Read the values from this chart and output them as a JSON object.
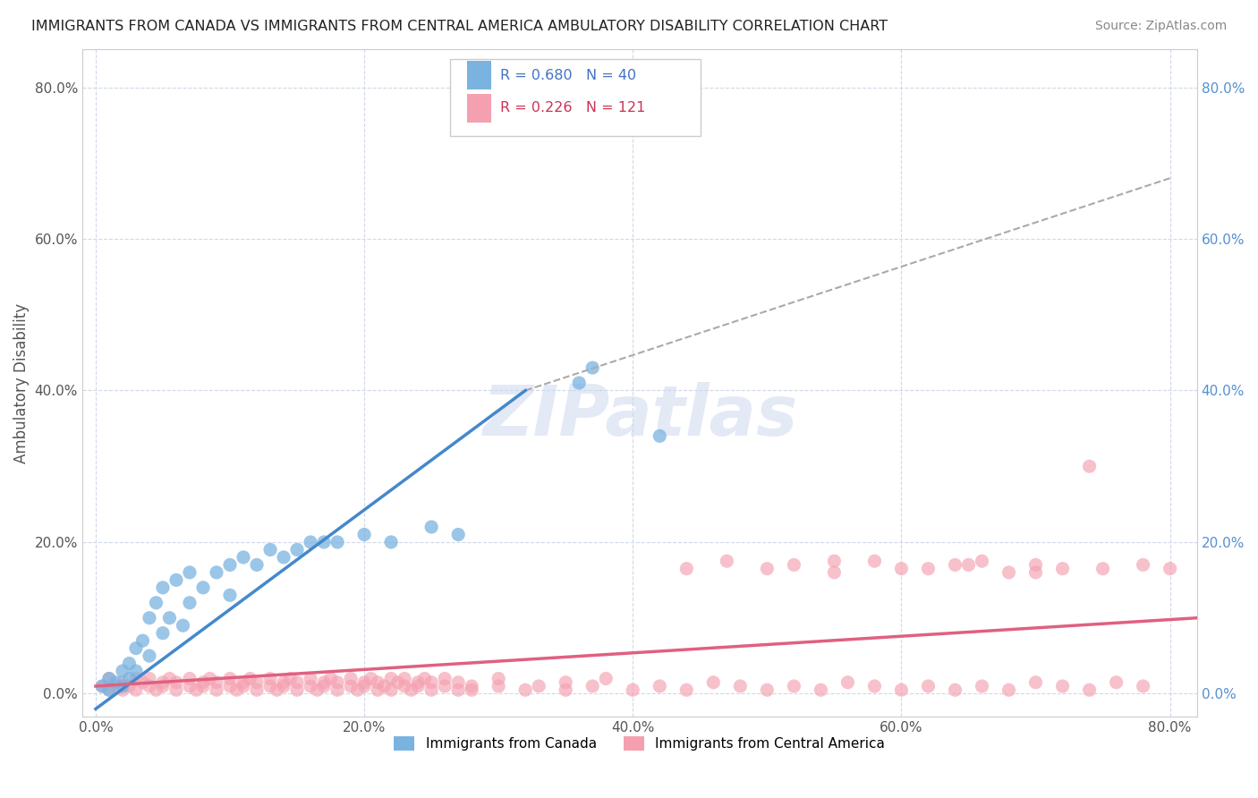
{
  "title": "IMMIGRANTS FROM CANADA VS IMMIGRANTS FROM CENTRAL AMERICA AMBULATORY DISABILITY CORRELATION CHART",
  "source": "Source: ZipAtlas.com",
  "ylabel": "Ambulatory Disability",
  "x_tick_labels": [
    "0.0%",
    "20.0%",
    "40.0%",
    "60.0%",
    "80.0%"
  ],
  "x_tick_vals": [
    0.0,
    0.2,
    0.4,
    0.6,
    0.8
  ],
  "y_tick_labels": [
    "0.0%",
    "20.0%",
    "40.0%",
    "60.0%",
    "80.0%"
  ],
  "y_tick_vals": [
    0.0,
    0.2,
    0.4,
    0.6,
    0.8
  ],
  "xlim": [
    -0.01,
    0.82
  ],
  "ylim": [
    -0.03,
    0.85
  ],
  "canada_color": "#7ab3e0",
  "centralamerica_color": "#f4a0b0",
  "watermark": "ZIPatlas",
  "grid_color": "#d0d8e8",
  "background_color": "#ffffff",
  "title_color": "#222222",
  "source_color": "#888888",
  "canada_scatter": [
    [
      0.005,
      0.01
    ],
    [
      0.01,
      0.02
    ],
    [
      0.01,
      0.005
    ],
    [
      0.015,
      0.015
    ],
    [
      0.02,
      0.03
    ],
    [
      0.02,
      0.01
    ],
    [
      0.025,
      0.04
    ],
    [
      0.025,
      0.02
    ],
    [
      0.03,
      0.06
    ],
    [
      0.03,
      0.03
    ],
    [
      0.035,
      0.07
    ],
    [
      0.04,
      0.1
    ],
    [
      0.04,
      0.05
    ],
    [
      0.045,
      0.12
    ],
    [
      0.05,
      0.08
    ],
    [
      0.05,
      0.14
    ],
    [
      0.055,
      0.1
    ],
    [
      0.06,
      0.15
    ],
    [
      0.065,
      0.09
    ],
    [
      0.07,
      0.16
    ],
    [
      0.07,
      0.12
    ],
    [
      0.08,
      0.14
    ],
    [
      0.09,
      0.16
    ],
    [
      0.1,
      0.17
    ],
    [
      0.1,
      0.13
    ],
    [
      0.11,
      0.18
    ],
    [
      0.12,
      0.17
    ],
    [
      0.13,
      0.19
    ],
    [
      0.14,
      0.18
    ],
    [
      0.15,
      0.19
    ],
    [
      0.16,
      0.2
    ],
    [
      0.17,
      0.2
    ],
    [
      0.18,
      0.2
    ],
    [
      0.2,
      0.21
    ],
    [
      0.22,
      0.2
    ],
    [
      0.25,
      0.22
    ],
    [
      0.27,
      0.21
    ],
    [
      0.36,
      0.41
    ],
    [
      0.37,
      0.43
    ],
    [
      0.42,
      0.34
    ]
  ],
  "canada_line_x": [
    0.0,
    0.32
  ],
  "canada_line_y": [
    -0.02,
    0.4
  ],
  "centralamerica_scatter": [
    [
      0.005,
      0.01
    ],
    [
      0.01,
      0.02
    ],
    [
      0.01,
      0.005
    ],
    [
      0.015,
      0.01
    ],
    [
      0.02,
      0.015
    ],
    [
      0.02,
      0.005
    ],
    [
      0.025,
      0.01
    ],
    [
      0.03,
      0.02
    ],
    [
      0.03,
      0.005
    ],
    [
      0.035,
      0.015
    ],
    [
      0.04,
      0.01
    ],
    [
      0.04,
      0.02
    ],
    [
      0.045,
      0.005
    ],
    [
      0.05,
      0.015
    ],
    [
      0.05,
      0.01
    ],
    [
      0.055,
      0.02
    ],
    [
      0.06,
      0.005
    ],
    [
      0.06,
      0.015
    ],
    [
      0.07,
      0.01
    ],
    [
      0.07,
      0.02
    ],
    [
      0.075,
      0.005
    ],
    [
      0.08,
      0.015
    ],
    [
      0.08,
      0.01
    ],
    [
      0.085,
      0.02
    ],
    [
      0.09,
      0.005
    ],
    [
      0.09,
      0.015
    ],
    [
      0.1,
      0.01
    ],
    [
      0.1,
      0.02
    ],
    [
      0.105,
      0.005
    ],
    [
      0.11,
      0.015
    ],
    [
      0.11,
      0.01
    ],
    [
      0.115,
      0.02
    ],
    [
      0.12,
      0.005
    ],
    [
      0.12,
      0.015
    ],
    [
      0.13,
      0.01
    ],
    [
      0.13,
      0.02
    ],
    [
      0.135,
      0.005
    ],
    [
      0.14,
      0.015
    ],
    [
      0.14,
      0.01
    ],
    [
      0.145,
      0.02
    ],
    [
      0.15,
      0.005
    ],
    [
      0.15,
      0.015
    ],
    [
      0.16,
      0.01
    ],
    [
      0.16,
      0.02
    ],
    [
      0.165,
      0.005
    ],
    [
      0.17,
      0.015
    ],
    [
      0.17,
      0.01
    ],
    [
      0.175,
      0.02
    ],
    [
      0.18,
      0.005
    ],
    [
      0.18,
      0.015
    ],
    [
      0.19,
      0.01
    ],
    [
      0.19,
      0.02
    ],
    [
      0.195,
      0.005
    ],
    [
      0.2,
      0.015
    ],
    [
      0.2,
      0.01
    ],
    [
      0.205,
      0.02
    ],
    [
      0.21,
      0.005
    ],
    [
      0.21,
      0.015
    ],
    [
      0.215,
      0.01
    ],
    [
      0.22,
      0.02
    ],
    [
      0.22,
      0.005
    ],
    [
      0.225,
      0.015
    ],
    [
      0.23,
      0.01
    ],
    [
      0.23,
      0.02
    ],
    [
      0.235,
      0.005
    ],
    [
      0.24,
      0.015
    ],
    [
      0.24,
      0.01
    ],
    [
      0.245,
      0.02
    ],
    [
      0.25,
      0.005
    ],
    [
      0.25,
      0.015
    ],
    [
      0.26,
      0.01
    ],
    [
      0.26,
      0.02
    ],
    [
      0.27,
      0.005
    ],
    [
      0.27,
      0.015
    ],
    [
      0.28,
      0.01
    ],
    [
      0.28,
      0.005
    ],
    [
      0.3,
      0.01
    ],
    [
      0.3,
      0.02
    ],
    [
      0.32,
      0.005
    ],
    [
      0.33,
      0.01
    ],
    [
      0.35,
      0.005
    ],
    [
      0.35,
      0.015
    ],
    [
      0.37,
      0.01
    ],
    [
      0.38,
      0.02
    ],
    [
      0.4,
      0.005
    ],
    [
      0.42,
      0.01
    ],
    [
      0.44,
      0.005
    ],
    [
      0.46,
      0.015
    ],
    [
      0.48,
      0.01
    ],
    [
      0.5,
      0.005
    ],
    [
      0.52,
      0.01
    ],
    [
      0.54,
      0.005
    ],
    [
      0.56,
      0.015
    ],
    [
      0.58,
      0.01
    ],
    [
      0.6,
      0.005
    ],
    [
      0.62,
      0.01
    ],
    [
      0.44,
      0.165
    ],
    [
      0.47,
      0.175
    ],
    [
      0.5,
      0.165
    ],
    [
      0.52,
      0.17
    ],
    [
      0.55,
      0.16
    ],
    [
      0.58,
      0.175
    ],
    [
      0.62,
      0.165
    ],
    [
      0.64,
      0.17
    ],
    [
      0.66,
      0.175
    ],
    [
      0.68,
      0.16
    ],
    [
      0.7,
      0.17
    ],
    [
      0.72,
      0.165
    ],
    [
      0.65,
      0.17
    ],
    [
      0.6,
      0.165
    ],
    [
      0.55,
      0.175
    ],
    [
      0.7,
      0.16
    ],
    [
      0.75,
      0.165
    ],
    [
      0.78,
      0.17
    ],
    [
      0.8,
      0.165
    ],
    [
      0.74,
      0.3
    ],
    [
      0.64,
      0.005
    ],
    [
      0.66,
      0.01
    ],
    [
      0.68,
      0.005
    ],
    [
      0.7,
      0.015
    ],
    [
      0.72,
      0.01
    ],
    [
      0.74,
      0.005
    ],
    [
      0.76,
      0.015
    ],
    [
      0.78,
      0.01
    ]
  ],
  "ca_line_x": [
    0.0,
    0.82
  ],
  "ca_line_y": [
    0.01,
    0.1
  ],
  "dashed_line_x": [
    0.32,
    0.8
  ],
  "dashed_line_y": [
    0.4,
    0.68
  ]
}
